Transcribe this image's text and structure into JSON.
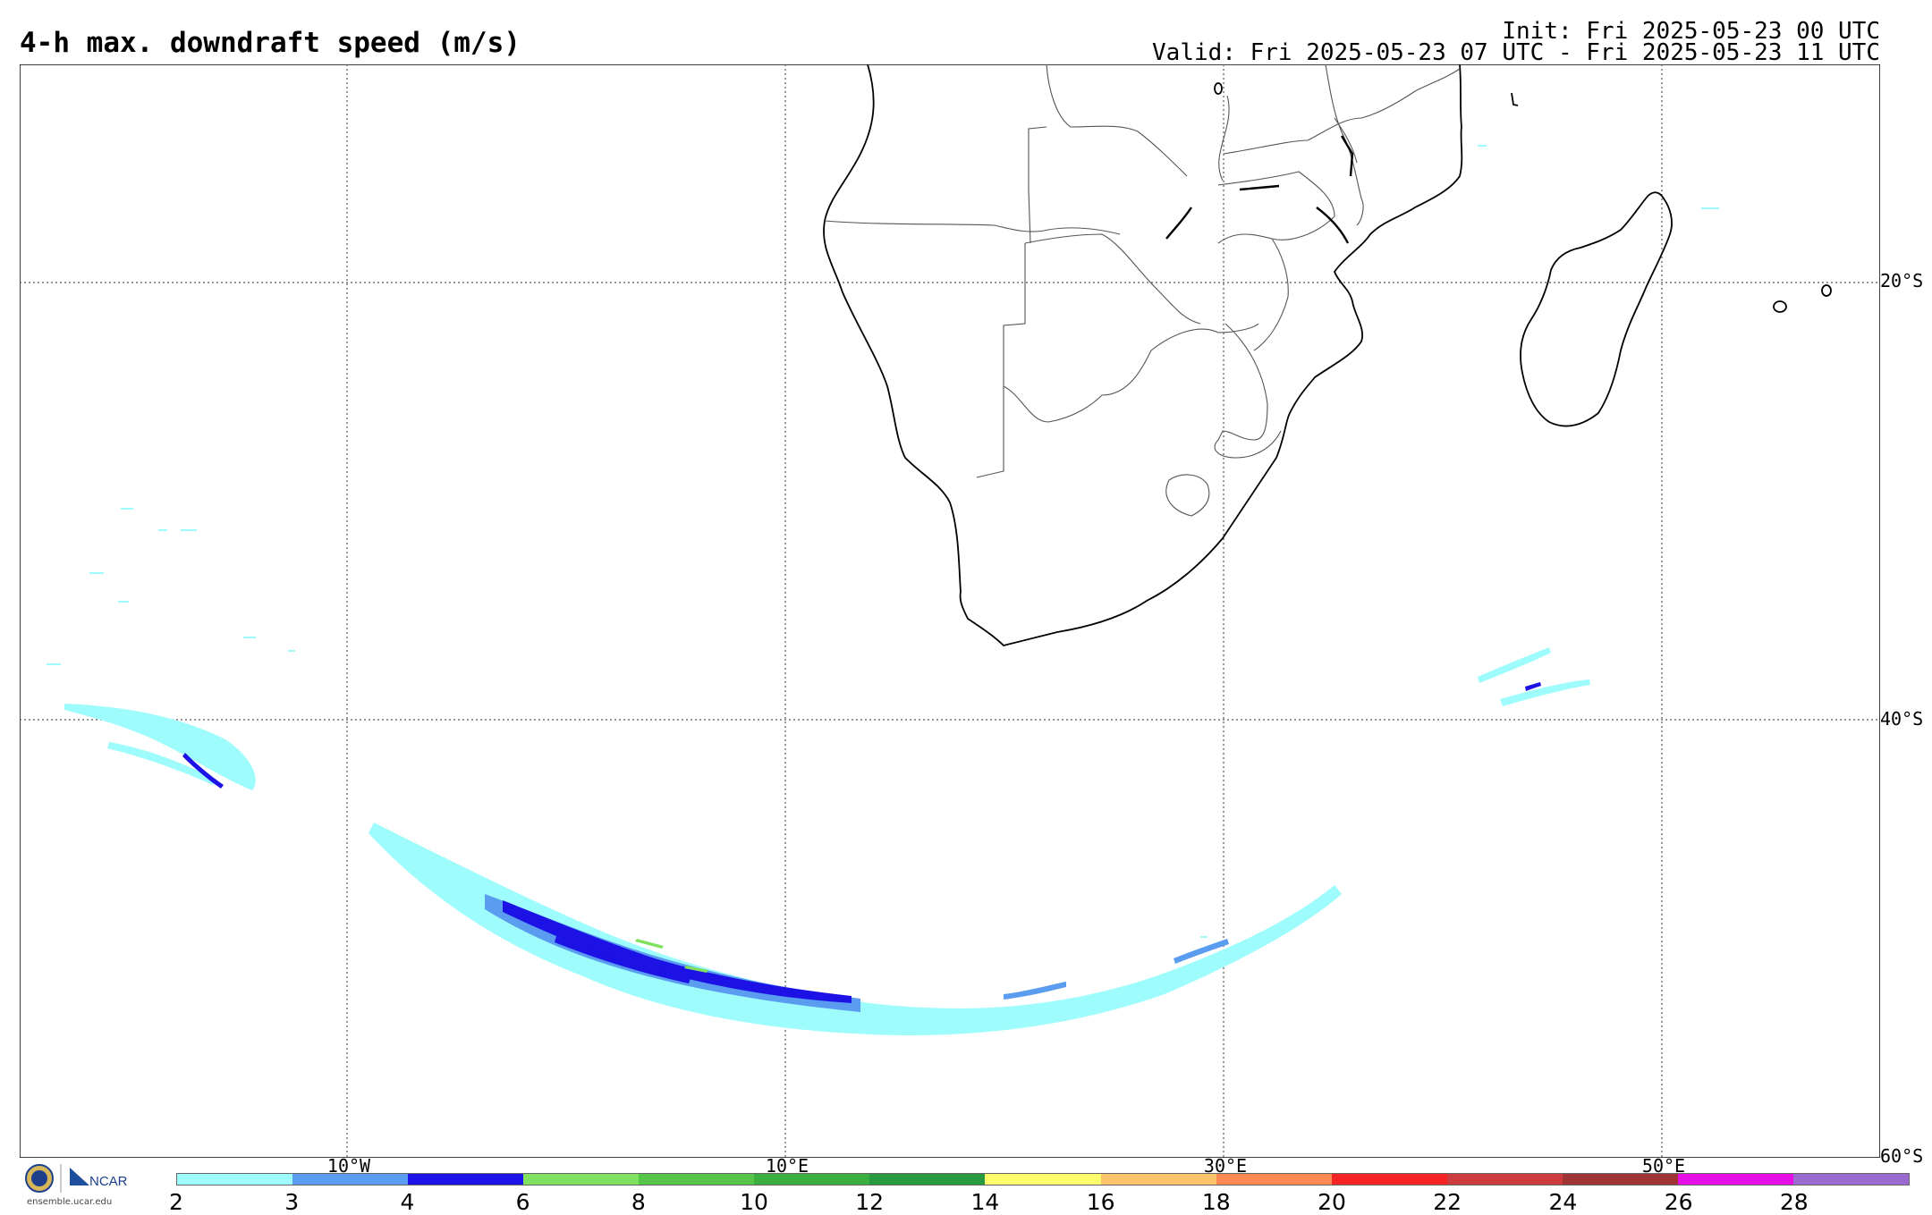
{
  "header": {
    "title": "4-h max. downdraft speed (m/s)",
    "init": "Init: Fri 2025-05-23 00 UTC",
    "valid": "Valid: Fri 2025-05-23 07 UTC - Fri 2025-05-23 11 UTC"
  },
  "map": {
    "region": "Southern Africa / South Atlantic / SW Indian Ocean",
    "lat_labels": [
      "20°S",
      "40°S",
      "60°S"
    ],
    "lon_labels": [
      "10°W",
      "10°E",
      "30°E",
      "50°E"
    ],
    "gridlines": "dotted"
  },
  "colorbar": {
    "labels": [
      "2",
      "3",
      "4",
      "6",
      "8",
      "10",
      "12",
      "14",
      "16",
      "18",
      "20",
      "22",
      "24",
      "26",
      "28"
    ],
    "colors": [
      "#9ffcfc",
      "#5a9cf0",
      "#1c12e6",
      "#80e060",
      "#56c64a",
      "#3aae3e",
      "#279a40",
      "#fdfc6c",
      "#fcc46a",
      "#fc8a52",
      "#f42424",
      "#cc3c3c",
      "#a03434",
      "#e610e6",
      "#9a6ad0"
    ]
  },
  "logo": {
    "text": "ensemble.ucar.edu",
    "org": "NCAR"
  }
}
